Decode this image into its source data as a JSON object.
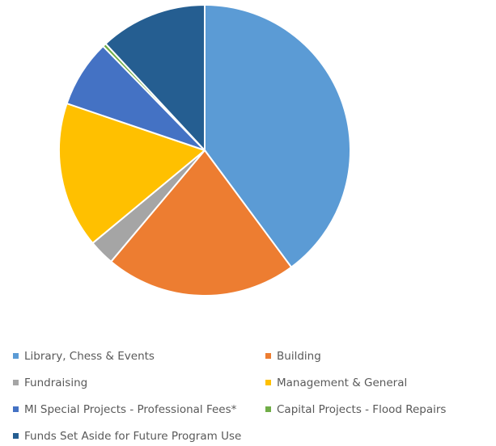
{
  "chart_data": {
    "type": "pie",
    "start_angle_deg": 0,
    "direction": "clockwise",
    "legend_position": "bottom",
    "slices": [
      {
        "label": "Library, Chess & Events",
        "value": 40.5,
        "color": "#5b9bd5"
      },
      {
        "label": "Building",
        "value": 21.6,
        "color": "#ed7d31"
      },
      {
        "label": "Fundraising",
        "value": 2.9,
        "color": "#a5a5a5"
      },
      {
        "label": "Management & General",
        "value": 16.5,
        "color": "#ffc000"
      },
      {
        "label": "MI Special Projects - Professional Fees*",
        "value": 7.6,
        "color": "#4472c4"
      },
      {
        "label": "Capital Projects - Flood Repairs",
        "value": 0.4,
        "color": "#70ad47"
      },
      {
        "label": "Funds Set Aside for Future Program Use",
        "value": 12.1,
        "color": "#255e91"
      }
    ]
  }
}
